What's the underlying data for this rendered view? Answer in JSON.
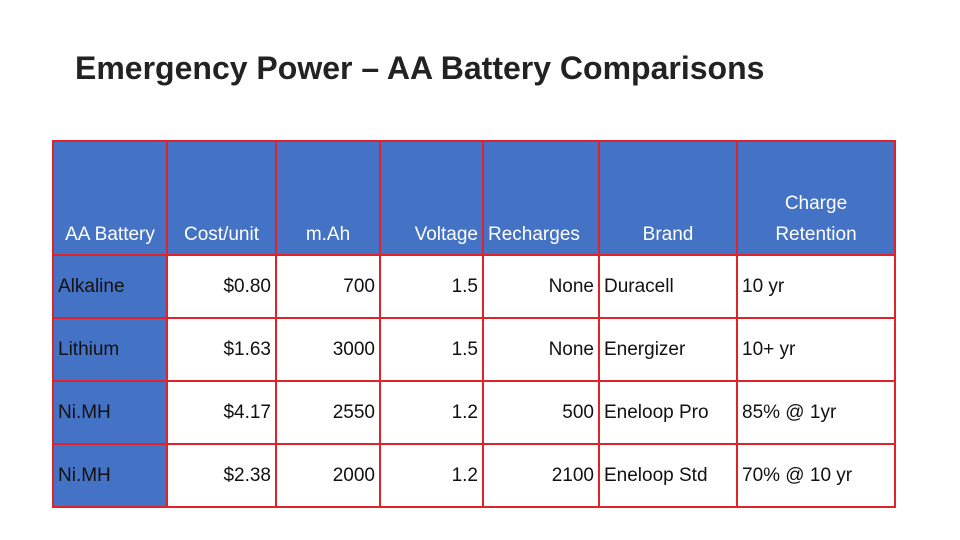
{
  "title": "Emergency Power – AA Battery Comparisons",
  "headers": [
    "AA Battery",
    "Cost/unit",
    "m.Ah",
    "Voltage",
    "Recharges",
    "Brand",
    "Charge Retention"
  ],
  "rows": [
    [
      "Alkaline",
      "$0.80",
      "700",
      "1.5",
      "None",
      "Duracell",
      "10 yr"
    ],
    [
      "Lithium",
      "$1.63",
      "3000",
      "1.5",
      "None",
      "Energizer",
      "10+ yr"
    ],
    [
      "Ni.MH",
      "$4.17",
      "2550",
      "1.2",
      "500",
      "Eneloop Pro",
      "85% @ 1yr"
    ],
    [
      "Ni.MH",
      "$2.38",
      "2000",
      "1.2",
      "2100",
      "Eneloop Std",
      "70% @ 10 yr"
    ]
  ],
  "colors": {
    "header_fill": "#4472c4",
    "border": "#e0222a",
    "header_text": "#ffffff"
  }
}
